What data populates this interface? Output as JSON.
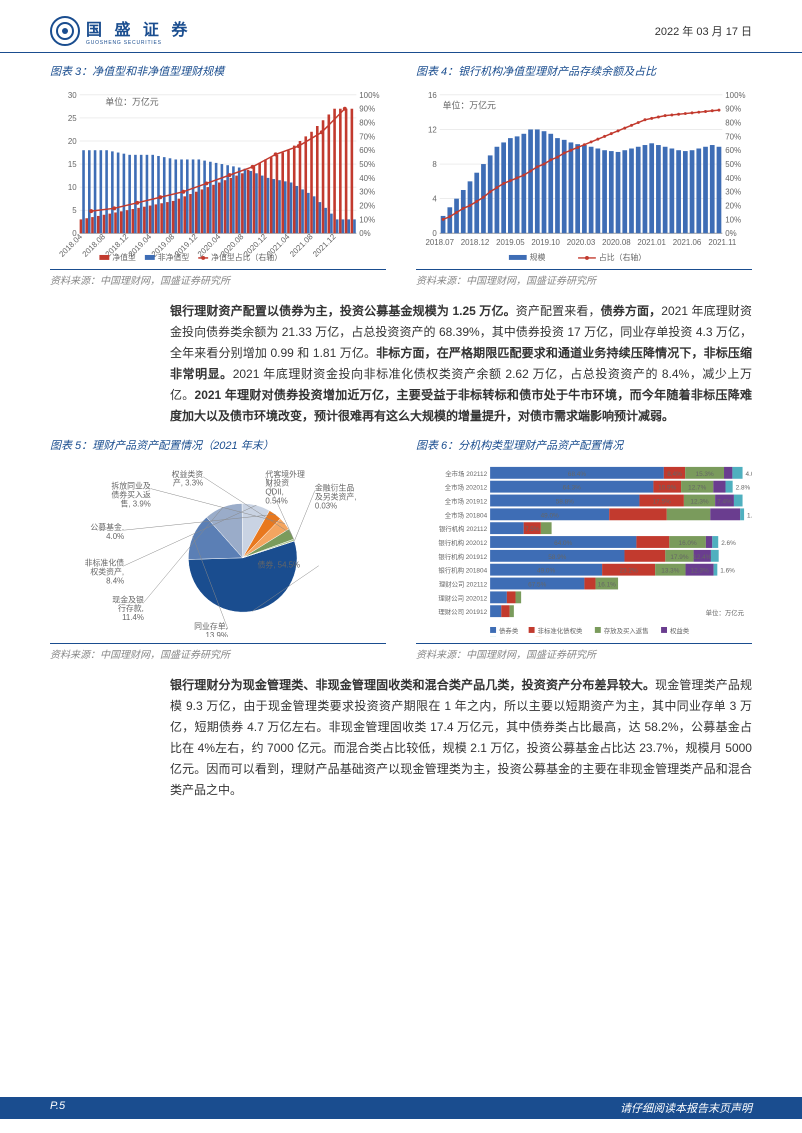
{
  "header": {
    "company_name": "国 盛 证 券",
    "company_sub": "GUOSHENG SECURITIES",
    "date": "2022 年 03 月 17 日"
  },
  "chart3": {
    "title": "图表 3：净值型和非净值型理财规模",
    "type": "bar+line",
    "unit": "单位：万亿元",
    "y_left_max": 30,
    "y_left_ticks": [
      0,
      5,
      10,
      15,
      20,
      25,
      30
    ],
    "y_right_max": 100,
    "y_right_ticks": [
      0,
      10,
      20,
      30,
      40,
      50,
      60,
      70,
      80,
      90,
      100
    ],
    "y_right_suffix": "%",
    "x_labels": [
      "2018.04",
      "2018.08",
      "2018.12",
      "2019.04",
      "2019.08",
      "2019.12",
      "2020.04",
      "2020.08",
      "2020.12",
      "2021.04",
      "2021.08",
      "2021.12"
    ],
    "series_blue": [
      18,
      18,
      17,
      17,
      16,
      16,
      15,
      14,
      12,
      11,
      8,
      3
    ],
    "series_red_bar": [
      3,
      4,
      5,
      6,
      7,
      9,
      11,
      13,
      16,
      18,
      22,
      27
    ],
    "series_red_line_pct": [
      16,
      18,
      22,
      26,
      30,
      36,
      42,
      48,
      57,
      63,
      73,
      90
    ],
    "colors": {
      "blue": "#3e6db5",
      "red": "#c23a2e",
      "grid": "#d9d9d9"
    },
    "legend": [
      "净值型",
      "非净值型",
      "净值型占比（右轴）"
    ],
    "source": "资料来源：中国理财网，国盛证券研究所"
  },
  "chart4": {
    "title": "图表 4：银行机构净值型理财产品存续余额及占比",
    "type": "bar+line",
    "unit": "单位：万亿元",
    "y_left_max": 16,
    "y_left_ticks": [
      0,
      4,
      8,
      12,
      16
    ],
    "y_right_max": 100,
    "y_right_ticks": [
      0,
      10,
      20,
      30,
      40,
      50,
      60,
      70,
      80,
      90,
      100
    ],
    "y_right_suffix": "%",
    "x_labels": [
      "2018.07",
      "2018.12",
      "2019.05",
      "2019.10",
      "2020.03",
      "2020.08",
      "2021.01",
      "2021.06",
      "2021.11"
    ],
    "bars": [
      2,
      3,
      4,
      5,
      6,
      7,
      8,
      9,
      10,
      10.5,
      11,
      11.2,
      11.5,
      12,
      12,
      11.8,
      11.5,
      11,
      10.8,
      10.5,
      10.3,
      10.2,
      10,
      9.8,
      9.6,
      9.5,
      9.4,
      9.6,
      9.8,
      10,
      10.2,
      10.4,
      10.2,
      10,
      9.8,
      9.6,
      9.5,
      9.6,
      9.8,
      10,
      10.2,
      10
    ],
    "line_pct": [
      10,
      12,
      15,
      18,
      20,
      23,
      26,
      30,
      33,
      36,
      38,
      40,
      42,
      45,
      48,
      50,
      53,
      55,
      58,
      60,
      62,
      64,
      66,
      68,
      70,
      72,
      74,
      76,
      78,
      80,
      82,
      83,
      84,
      85,
      85.5,
      86,
      86.5,
      87,
      87.5,
      88,
      88.5,
      89
    ],
    "colors": {
      "blue": "#3e6db5",
      "red": "#c23a2e",
      "grid": "#d9d9d9"
    },
    "legend": [
      "规模",
      "占比（右轴）"
    ],
    "source": "资料来源：中国理财网，国盛证券研究所"
  },
  "paragraph1": {
    "text": "银行理财资产配置以债券为主，投资公募基金规模为 1.25 万亿。资产配置来看，债券方面，2021 年底理财资金投向债券类余额为 21.33 万亿，占总投资资产的 68.39%，其中债券投资 17 万亿，同业存单投资 4.3 万亿，全年来看分别增加 0.99 和 1.81 万亿。非标方面，在严格期限匹配要求和通道业务持续压降情况下，非标压缩非常明显。2021 年底理财资金投向非标准化债权类资产余额 2.62 万亿，占总投资资产的 8.4%，减少上万亿。2021 年理财对债券投资增加近万亿，主要受益于非标转标和债市处于牛市环境，而今年随着非标压降难度加大以及债市环境改变，预计很难再有这么大规模的增量提升，对债市需求端影响预计减弱。",
    "bold_phrases": [
      "银行理财资产配置以债券为主，投资公募基金规模为 1.25 万亿。",
      "债券方面，",
      "非标方面，在严格期限匹配要求和通道业务持续压降情况下，非标压缩非常明显。",
      "2021 年理财对债券投资增加近万亿，主要受益于非标转标和债市处于牛市环境，而今年随着非标压降难度加大以及债市环境改变，预计很难再有这么大规模的增量提升，对债市需求端影响预计减弱。"
    ]
  },
  "chart5": {
    "title": "图表 5：理财产品资产配置情况（2021 年末）",
    "type": "pie",
    "slices": [
      {
        "label": "债券, 54.5%",
        "value": 54.5,
        "color": "#1a4d8f"
      },
      {
        "label": "同业存单,\n13.9%",
        "value": 13.9,
        "color": "#5b7fb5"
      },
      {
        "label": "现金及银\n行存款,\n11.4%",
        "value": 11.4,
        "color": "#9aacc9"
      },
      {
        "label": "非标准化债\n权类资产,\n8.4%",
        "value": 8.4,
        "color": "#c9d3e3"
      },
      {
        "label": "公募基金,\n4.0%",
        "value": 4.0,
        "color": "#e8781e"
      },
      {
        "label": "拆放同业及\n债券买入返\n售, 3.9%",
        "value": 3.9,
        "color": "#f4a560"
      },
      {
        "label": "权益类资\n产, 3.3%",
        "value": 3.3,
        "color": "#7a9b5c"
      },
      {
        "label": "代客境外理\n财投资\nQDII,\n0.54%",
        "value": 0.54,
        "color": "#a8c088"
      },
      {
        "label": "金融衍生品\n及另类资产,\n0.03%",
        "value": 0.03,
        "color": "#d4e0c5"
      }
    ],
    "source": "资料来源：中国理财网，国盛证券研究所"
  },
  "chart6": {
    "title": "图表 6：分机构类型理财产品资产配置情况",
    "type": "stacked-bar",
    "categories": [
      "全市场 202112",
      "全市场 202012",
      "全市场 201912",
      "全市场 201804",
      "银行机构 202112",
      "银行机构 202012",
      "银行机构 201912",
      "银行机构 201804",
      "理财公司 202112",
      "理财公司 202012",
      "理财公司 201912"
    ],
    "colors": {
      "债券类": "#3e6db5",
      "非标准化债权类": "#c23a2e",
      "存放及买入返售": "#7a9b5c",
      "权益类": "#6a3d8f",
      "公募基金": "#4fb0bf",
      "其他": "#e8781e"
    },
    "legend": [
      "债券类",
      "非标准化债权类",
      "存放及买入返售",
      "权益类",
      "公募基金",
      "其他"
    ],
    "unit": "单位：万亿元",
    "rows": [
      {
        "vals": [
          68.4,
          8.4,
          15.3,
          3.3,
          4.0
        ],
        "labels": [
          "68.4%",
          "8.4%",
          "15.3%",
          "3.3%",
          "4.0%"
        ]
      },
      {
        "vals": [
          64.3,
          10.9,
          12.7,
          4.8,
          2.8
        ],
        "labels": [
          "64.3%",
          "10.9%",
          "12.7%",
          "4.8%",
          "2.8%"
        ]
      },
      {
        "vals": [
          58.8,
          17.5,
          12.3,
          7.4,
          3.4
        ],
        "labels": [
          "58.8%",
          "17.5%",
          "12.3%",
          "7.4%",
          ""
        ]
      },
      {
        "vals": [
          49.0,
          23.7,
          17.9,
          12.3,
          1.6
        ],
        "labels": [
          "49.0%",
          "",
          "",
          "",
          "1.6%"
        ]
      },
      {
        "vals": [
          14.7,
          7.5,
          4.7,
          0,
          0
        ],
        "labels": [
          "",
          "7.5%",
          "4.7%",
          "",
          ""
        ]
      },
      {
        "vals": [
          64.0,
          14.4,
          16.0,
          2.8,
          2.6
        ],
        "labels": [
          "64.0%",
          "",
          "16.0%",
          "",
          "2.6%"
        ]
      },
      {
        "vals": [
          58.9,
          17.9,
          12.4,
          7.6,
          3.4
        ],
        "labels": [
          "58.9%",
          "",
          "17.9%",
          "12.4%",
          ""
        ]
      },
      {
        "vals": [
          49.0,
          23.2,
          13.3,
          12.3,
          1.6
        ],
        "labels": [
          "49.0%",
          "23.2%",
          "13.3%",
          "12.3%",
          "1.6%"
        ]
      },
      {
        "vals": [
          67.5,
          8.0,
          16.1,
          0,
          0
        ],
        "labels": [
          "67.5%",
          "",
          "16.1%",
          "",
          ""
        ]
      },
      {
        "vals": [
          12,
          6.2,
          4,
          0,
          0
        ],
        "labels": [
          "",
          "6.2%",
          "",
          "",
          ""
        ]
      },
      {
        "vals": [
          8,
          6,
          3,
          0,
          0
        ],
        "labels": [
          "",
          "",
          "",
          "",
          ""
        ]
      }
    ],
    "source": "资料来源：中国理财网，国盛证券研究所"
  },
  "paragraph2": {
    "text": "银行理财分为现金管理类、非现金管理固收类和混合类产品几类，投资资产分布差异较大。现金管理类产品规模 9.3 万亿，由于现金管理类要求投资资产期限在 1 年之内，所以主要以短期资产为主，其中同业存单 3 万亿，短期债券 4.7 万亿左右。非现金管理固收类 17.4 万亿元，其中债券类占比最高，达 58.2%，公募基金占比在 4%左右，约 7000 亿元。而混合类占比较低，规模 2.1 万亿，投资公募基金占比达 23.7%，规模月 5000 亿元。因而可以看到，理财产品基础资产以现金管理类为主，投资公募基金的主要在非现金管理类产品和混合类产品之中。",
    "bold_phrase": "银行理财分为现金管理类、非现金管理固收类和混合类产品几类，投资资产分布差异较大。"
  },
  "footer": {
    "page": "P.5",
    "disclaimer": "请仔细阅读本报告末页声明"
  }
}
